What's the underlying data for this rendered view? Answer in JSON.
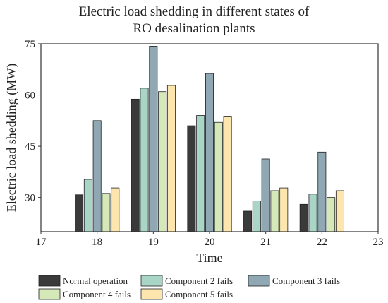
{
  "chart_data": {
    "type": "bar",
    "title_lines": [
      "Electric load shedding in different states of",
      "RO desalination plants"
    ],
    "xlabel": "Time",
    "ylabel": "Electric load shedding (MW)",
    "xlim": [
      17,
      23
    ],
    "ylim": [
      20,
      75
    ],
    "x_ticks": [
      "17",
      "18",
      "19",
      "20",
      "21",
      "22",
      "23"
    ],
    "y_ticks": [
      "30",
      "45",
      "60",
      "75"
    ],
    "categories": [
      "18",
      "19",
      "20",
      "21",
      "22"
    ],
    "grid": false,
    "legend_position": "bottom",
    "series": [
      {
        "name": "Normal operation",
        "color": "#3a3a3a",
        "values": [
          30.8,
          58.8,
          51.0,
          26.0,
          28.0
        ]
      },
      {
        "name": "Component 2 fails",
        "color": "#a9d5c6",
        "values": [
          35.3,
          62.0,
          54.0,
          29.0,
          31.0
        ]
      },
      {
        "name": "Component 3 fails",
        "color": "#8fa8b4",
        "values": [
          52.5,
          74.3,
          66.3,
          41.3,
          43.3
        ]
      },
      {
        "name": "Component 4 fails",
        "color": "#d5e8b8",
        "values": [
          31.2,
          61.0,
          52.0,
          32.0,
          30.0
        ]
      },
      {
        "name": "Component 5 fails",
        "color": "#fce6ae",
        "values": [
          32.8,
          62.8,
          53.8,
          32.8,
          32.0
        ]
      }
    ]
  }
}
